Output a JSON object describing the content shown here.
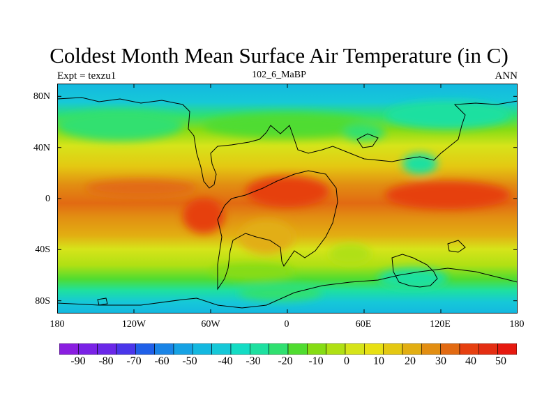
{
  "title": "Coldest Month Mean Surface Air Temperature (in C)",
  "experiment_label": "Expt = texzu1",
  "run_label": "102_6_MaBP",
  "season_label": "ANN",
  "map": {
    "lon_range": [
      -180,
      180
    ],
    "lat_range": [
      -90,
      90
    ],
    "x_ticks": [
      "180",
      "120W",
      "60W",
      "0",
      "60E",
      "120E",
      "180"
    ],
    "y_ticks": [
      "80N",
      "40N",
      "0",
      "40S",
      "80S"
    ]
  },
  "colorbar": {
    "labels": [
      "-90",
      "-80",
      "-70",
      "-60",
      "-50",
      "-40",
      "-30",
      "-20",
      "-10",
      "0",
      "10",
      "20",
      "30",
      "40",
      "50"
    ],
    "colors": [
      "#8a1ee0",
      "#7a22e6",
      "#6a28e8",
      "#4a36ea",
      "#2060e8",
      "#1a84e6",
      "#16a2e4",
      "#14b8e0",
      "#16c8d8",
      "#14dcc4",
      "#1ee0a0",
      "#30e070",
      "#50dc30",
      "#86dc14",
      "#b0e014",
      "#d6e41a",
      "#e8e014",
      "#e4c812",
      "#e2ae12",
      "#e28e12",
      "#e26a12",
      "#e64010",
      "#e42e12",
      "#e61a10"
    ]
  }
}
